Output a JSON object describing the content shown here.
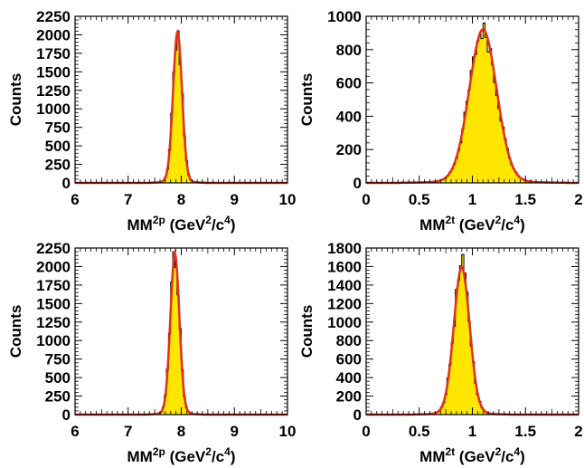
{
  "chart_data": [
    {
      "type": "histogram",
      "xlabel": "MM²p (GeV²/c⁴)",
      "ylabel": "Counts",
      "xlim": [
        6,
        10
      ],
      "ylim": [
        0,
        2250
      ],
      "xticks": [
        "6",
        "7",
        "8",
        "9",
        "10"
      ],
      "yticks": [
        "0",
        "250",
        "500",
        "750",
        "1000",
        "1250",
        "1500",
        "1750",
        "2000",
        "2250"
      ],
      "peak": {
        "mean": 7.93,
        "sigma": 0.085,
        "height": 1950
      },
      "histogram_max": 2050,
      "fill_color": "#ffe600",
      "fit_color": "#e0301e"
    },
    {
      "type": "histogram",
      "xlabel": "MM²t (GeV²/c⁴)",
      "ylabel": "Counts",
      "xlim": [
        0,
        2
      ],
      "ylim": [
        0,
        1000
      ],
      "xticks": [
        "0",
        "0.5",
        "1",
        "1.5",
        "2"
      ],
      "yticks": [
        "0",
        "200",
        "400",
        "600",
        "800",
        "1000"
      ],
      "peak": {
        "mean": 1.1,
        "sigma": 0.13,
        "height": 880
      },
      "histogram_max": 960,
      "fill_color": "#ffe600",
      "fit_color": "#e0301e"
    },
    {
      "type": "histogram",
      "xlabel": "MM²p (GeV²/c⁴)",
      "ylabel": "Counts",
      "xlim": [
        6,
        10
      ],
      "ylim": [
        0,
        2250
      ],
      "xticks": [
        "6",
        "7",
        "8",
        "9",
        "10"
      ],
      "yticks": [
        "0",
        "250",
        "500",
        "750",
        "1000",
        "1250",
        "1500",
        "1750",
        "2000",
        "2250"
      ],
      "peak": {
        "mean": 7.88,
        "sigma": 0.085,
        "height": 2080
      },
      "histogram_max": 2200,
      "fill_color": "#ffe600",
      "fit_color": "#e0301e"
    },
    {
      "type": "histogram",
      "xlabel": "MM²t (GeV²/c⁴)",
      "ylabel": "Counts",
      "xlim": [
        0,
        2
      ],
      "ylim": [
        0,
        1800
      ],
      "xticks": [
        "0",
        "0.5",
        "1",
        "1.5",
        "2"
      ],
      "yticks": [
        "0",
        "200",
        "400",
        "600",
        "800",
        "1000",
        "1200",
        "1400",
        "1600",
        "1800"
      ],
      "peak": {
        "mean": 0.9,
        "sigma": 0.075,
        "height": 1520
      },
      "histogram_max": 1730,
      "fill_color": "#ffe600",
      "fit_color": "#e0301e"
    }
  ]
}
